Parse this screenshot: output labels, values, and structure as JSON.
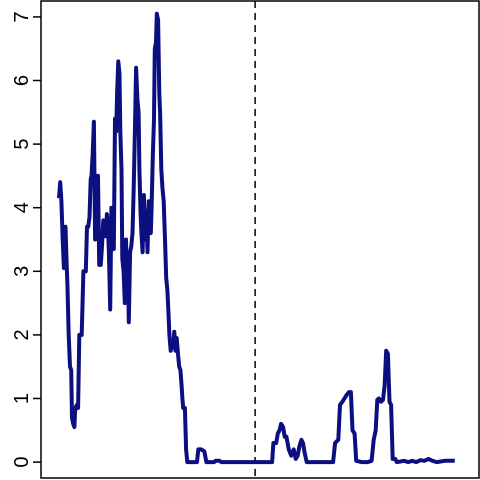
{
  "chart_data": {
    "type": "line",
    "title": "",
    "xlabel": "",
    "ylabel": "",
    "xlim": [
      0,
      100
    ],
    "ylim": [
      -0.25,
      7.25
    ],
    "y_ticks": [
      0,
      1,
      2,
      3,
      4,
      5,
      6,
      7
    ],
    "y_tick_labels": [
      "0",
      "1",
      "2",
      "3",
      "4",
      "5",
      "6",
      "7"
    ],
    "x_ticks": [],
    "grid": false,
    "legend": "none",
    "vline": {
      "x": 48.3,
      "style": "dashed",
      "color": "#000000"
    },
    "series": [
      {
        "color": "#0b0f80",
        "points": [
          [
            0,
            4.15
          ],
          [
            0.3,
            4.4
          ],
          [
            0.6,
            4.1
          ],
          [
            0.9,
            3.5
          ],
          [
            1.2,
            3.05
          ],
          [
            1.6,
            3.7
          ],
          [
            1.9,
            3.1
          ],
          [
            2.1,
            2.75
          ],
          [
            2.4,
            2.0
          ],
          [
            2.7,
            1.5
          ],
          [
            3.0,
            1.45
          ],
          [
            3.2,
            0.7
          ],
          [
            3.5,
            0.6
          ],
          [
            3.8,
            0.55
          ],
          [
            4.0,
            0.85
          ],
          [
            4.4,
            0.9
          ],
          [
            4.7,
            0.85
          ],
          [
            5.0,
            2.0
          ],
          [
            5.3,
            2.0
          ],
          [
            5.6,
            2.0
          ],
          [
            6.0,
            3.0
          ],
          [
            6.3,
            3.0
          ],
          [
            6.6,
            3.0
          ],
          [
            6.9,
            3.7
          ],
          [
            7.2,
            3.7
          ],
          [
            7.5,
            3.85
          ],
          [
            7.8,
            4.45
          ],
          [
            8.0,
            4.5
          ],
          [
            8.3,
            4.85
          ],
          [
            8.6,
            5.35
          ],
          [
            8.9,
            3.5
          ],
          [
            9.2,
            4.0
          ],
          [
            9.4,
            4.5
          ],
          [
            9.6,
            4.5
          ],
          [
            9.9,
            3.1
          ],
          [
            10.3,
            3.1
          ],
          [
            10.6,
            3.4
          ],
          [
            10.9,
            3.8
          ],
          [
            11.2,
            3.7
          ],
          [
            11.5,
            3.55
          ],
          [
            11.8,
            3.9
          ],
          [
            12.0,
            3.8
          ],
          [
            12.3,
            3.3
          ],
          [
            12.6,
            2.4
          ],
          [
            12.9,
            4.0
          ],
          [
            13.2,
            3.4
          ],
          [
            13.5,
            3.35
          ],
          [
            13.8,
            5.4
          ],
          [
            14.1,
            5.2
          ],
          [
            14.3,
            5.8
          ],
          [
            14.6,
            6.3
          ],
          [
            14.9,
            6.1
          ],
          [
            15.1,
            5.2
          ],
          [
            15.4,
            4.6
          ],
          [
            15.6,
            3.2
          ],
          [
            15.9,
            3.0
          ],
          [
            16.2,
            2.5
          ],
          [
            16.5,
            3.5
          ],
          [
            16.8,
            2.6
          ],
          [
            17.0,
            2.9
          ],
          [
            17.2,
            2.2
          ],
          [
            17.5,
            3.3
          ],
          [
            17.8,
            3.4
          ],
          [
            18.1,
            3.6
          ],
          [
            18.4,
            4.3
          ],
          [
            18.7,
            5.2
          ],
          [
            19.0,
            6.2
          ],
          [
            19.3,
            5.7
          ],
          [
            19.6,
            5.5
          ],
          [
            19.8,
            4.6
          ],
          [
            20.1,
            3.9
          ],
          [
            20.3,
            3.6
          ],
          [
            20.6,
            3.3
          ],
          [
            20.9,
            4.2
          ],
          [
            21.2,
            3.5
          ],
          [
            21.5,
            3.95
          ],
          [
            21.8,
            3.3
          ],
          [
            22.1,
            4.1
          ],
          [
            22.4,
            4.1
          ],
          [
            22.6,
            3.6
          ],
          [
            22.8,
            4.0
          ],
          [
            23.1,
            4.8
          ],
          [
            23.4,
            5.4
          ],
          [
            23.6,
            6.5
          ],
          [
            23.9,
            6.6
          ],
          [
            24.1,
            7.05
          ],
          [
            24.4,
            6.95
          ],
          [
            24.7,
            5.8
          ],
          [
            24.9,
            5.5
          ],
          [
            25.2,
            4.6
          ],
          [
            25.5,
            4.3
          ],
          [
            25.8,
            4.1
          ],
          [
            26.1,
            3.5
          ],
          [
            26.4,
            2.9
          ],
          [
            26.7,
            2.7
          ],
          [
            27.0,
            2.3
          ],
          [
            27.2,
            2.0
          ],
          [
            27.5,
            1.75
          ],
          [
            27.8,
            1.9
          ],
          [
            28.1,
            1.8
          ],
          [
            28.4,
            2.05
          ],
          [
            28.7,
            1.75
          ],
          [
            29.0,
            1.95
          ],
          [
            29.3,
            1.7
          ],
          [
            29.6,
            1.5
          ],
          [
            29.9,
            1.45
          ],
          [
            30.2,
            1.2
          ],
          [
            30.4,
            1.0
          ],
          [
            30.6,
            0.85
          ],
          [
            31.0,
            0.85
          ],
          [
            31.3,
            0.2
          ],
          [
            31.6,
            0.0
          ],
          [
            32.5,
            0.0
          ],
          [
            33.5,
            0.0
          ],
          [
            34.0,
            0.0
          ],
          [
            34.3,
            0.2
          ],
          [
            35.0,
            0.2
          ],
          [
            35.8,
            0.17
          ],
          [
            36.3,
            0.0
          ],
          [
            37.5,
            0.0
          ],
          [
            38.2,
            0.0
          ],
          [
            38.6,
            0.02
          ],
          [
            39.5,
            0.02
          ],
          [
            40.0,
            0.0
          ],
          [
            42,
            0.0
          ],
          [
            44,
            0.0
          ],
          [
            46,
            0.0
          ],
          [
            48,
            0.0
          ],
          [
            50,
            0.0
          ],
          [
            52,
            0.0
          ],
          [
            52.5,
            0.0
          ],
          [
            52.8,
            0.3
          ],
          [
            53.5,
            0.3
          ],
          [
            53.9,
            0.45
          ],
          [
            54.3,
            0.5
          ],
          [
            54.7,
            0.6
          ],
          [
            55.2,
            0.55
          ],
          [
            55.6,
            0.4
          ],
          [
            56,
            0.4
          ],
          [
            56.6,
            0.2
          ],
          [
            57.2,
            0.1
          ],
          [
            57.8,
            0.2
          ],
          [
            58.3,
            0.05
          ],
          [
            58.8,
            0.1
          ],
          [
            59.2,
            0.25
          ],
          [
            59.7,
            0.35
          ],
          [
            60.1,
            0.3
          ],
          [
            60.5,
            0.15
          ],
          [
            61,
            0.0
          ],
          [
            62,
            0.0
          ],
          [
            64,
            0.0
          ],
          [
            66,
            0.0
          ],
          [
            67.5,
            0.0
          ],
          [
            68,
            0.3
          ],
          [
            68.8,
            0.35
          ],
          [
            69.2,
            0.9
          ],
          [
            69.8,
            0.95
          ],
          [
            70.3,
            1.0
          ],
          [
            70.8,
            1.05
          ],
          [
            71.4,
            1.1
          ],
          [
            71.9,
            1.1
          ],
          [
            72.3,
            0.5
          ],
          [
            72.8,
            0.45
          ],
          [
            73.2,
            0.02
          ],
          [
            74.5,
            0.0
          ],
          [
            76,
            0.0
          ],
          [
            77,
            0.02
          ],
          [
            77.5,
            0.35
          ],
          [
            78,
            0.5
          ],
          [
            78.4,
            0.98
          ],
          [
            78.8,
            1.0
          ],
          [
            79.3,
            0.95
          ],
          [
            79.8,
            0.98
          ],
          [
            80.2,
            1.2
          ],
          [
            80.6,
            1.75
          ],
          [
            81.0,
            1.7
          ],
          [
            81.4,
            0.95
          ],
          [
            81.8,
            0.9
          ],
          [
            82.2,
            0.05
          ],
          [
            82.8,
            0.05
          ],
          [
            83.2,
            0.0
          ],
          [
            85,
            0.02
          ],
          [
            86,
            0.0
          ],
          [
            87,
            0.02
          ],
          [
            88,
            0.0
          ],
          [
            89,
            0.03
          ],
          [
            90,
            0.02
          ],
          [
            91,
            0.05
          ],
          [
            92,
            0.02
          ],
          [
            93,
            0.0
          ],
          [
            94,
            0.01
          ],
          [
            95,
            0.02
          ],
          [
            96,
            0.02
          ],
          [
            97.5,
            0.02
          ]
        ]
      }
    ]
  }
}
